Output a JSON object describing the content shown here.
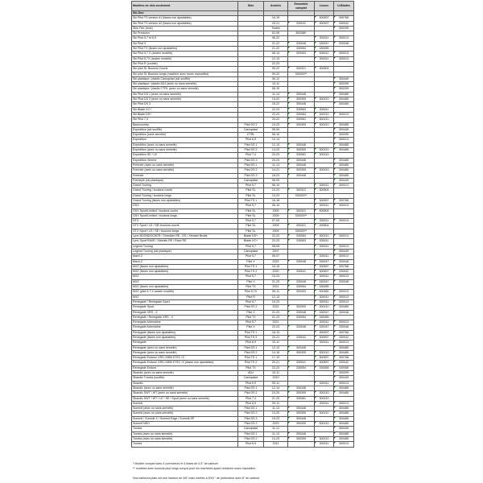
{
  "header": {
    "model": "Modèles de skis seulement",
    "skis": "Skis",
    "years": "Années",
    "complete": "Ensemble complet",
    "runners": "Lisses",
    "ublades": "U-Blades"
  },
  "section": "Ski-Doo",
  "rows": [
    [
      "Ski Pilot TS version #1 (lisses non ajustables)",
      "",
      "16-19",
      "",
      "300597",
      "300768"
    ],
    [
      "Ski Pilot TS version #2 (lisses non ajustables)",
      "",
      "20-21",
      "330041",
      "300597",
      "330042"
    ],
    [
      "Skis Flex (tous)",
      "",
      "Toutes",
      "",
      "",
      "300299"
    ],
    [
      "Ski Precision",
      "",
      "02-06",
      "300288*",
      "",
      ""
    ],
    [
      "Ski Pilot 5,7 et 6,9",
      "",
      "06-22",
      "",
      "300011",
      "300013"
    ],
    [
      "Ski Pilot X",
      "",
      "21-22",
      "330046",
      "330047",
      "330048"
    ],
    [
      "Ski Pilot TX (lisses non ajustables)",
      "",
      "21-22",
      "330054",
      "330055",
      ""
    ],
    [
      "Ski Pilot 5,7 X (ancien modèle)",
      "",
      "08-14",
      "300003",
      "300012",
      "300013"
    ],
    [
      "Ski Pilot 5,7X (ancien modèle)",
      "",
      "12-13",
      "",
      "300011",
      "300013"
    ],
    [
      "Ski Pilot R (course)",
      "",
      "22-23",
      "",
      "",
      ""
    ],
    [
      "Ski pilot SL Boulons Courts",
      "",
      "09-22",
      "300321",
      "300504",
      ""
    ],
    [
      "Ski pilot SL Boulons longs (machine avec roues manuelles)",
      "",
      "09-22",
      "330020**",
      "",
      ""
    ],
    [
      "Ski plastique / plastic Camoplast (ski soufflé)",
      "",
      "05-12",
      "",
      "",
      "300449"
    ],
    [
      "Ski plastique / plastic ADJ (avec ou sans semelle)",
      "",
      "10-11",
      "",
      "",
      "300299"
    ],
    [
      "Ski plastique / plastic CTRL (avec ou sans semelle)",
      "",
      "06-10",
      "",
      "",
      "300299"
    ],
    [
      "Ski Pilot DS 1 (avec ou sans semelle)",
      "",
      "11-14",
      "300446",
      "",
      "300485"
    ],
    [
      "Ski Pilot DS 2 (avec ou sans semelle)",
      "",
      "13-22",
      "300309",
      "300210",
      "300485"
    ],
    [
      "Ski Pilot DS 3",
      "",
      "15-22",
      "300446",
      "",
      "300485"
    ],
    [
      "Ski Blade XC+",
      "",
      "22-23",
      "330063",
      "300011",
      ""
    ],
    [
      "Ski Blade DS+",
      "",
      "22-23",
      "330064",
      "300210",
      "300013"
    ],
    [
      "Ski Pilot 7,4",
      "",
      "20-22",
      "330061",
      "300210",
      ""
    ],
    [
      "Backcountry",
      "Pilot DS 2",
      "19-23",
      "300309",
      "300210",
      "300485"
    ],
    [
      "Expedition (ski soufflé)",
      "Camoplast",
      "05-09",
      "",
      "",
      "300449"
    ],
    [
      "Expedition (sans semelle)",
      "CTRL",
      "06-10",
      "",
      "",
      "300299"
    ],
    [
      "Expedition",
      "Pilot 6,9",
      "10-14",
      "",
      "",
      "300013"
    ],
    [
      "Expedition (avec ou sans semelle)",
      "Pilot DS 1",
      "12-13",
      "300446",
      "",
      "300485"
    ],
    [
      "Expedition (avec ou sans semelle)",
      "Pilot DS 2",
      "14-23",
      "300309",
      "300210",
      "300485"
    ],
    [
      "Expedition SE / LE",
      "Pilot 7,4",
      "20-23",
      "330061",
      "300210",
      ""
    ],
    [
      "Expedition Xtreme",
      "Pilot DS 3",
      "20-23",
      "300446",
      "",
      "300485"
    ],
    [
      "Freeride (avec ou sans semelle)",
      "Pilot DS 1",
      "11-13",
      "300446",
      "",
      "300485"
    ],
    [
      "Freeride (avec ou sans semelle)",
      "Pilot DS 2",
      "14-21",
      "300309",
      "300210",
      "300485"
    ],
    [
      "Freeride",
      "Pilot DS 3",
      "18-23",
      "300446",
      "",
      "300485"
    ],
    [
      "Freestyle (ski plastique)",
      "Camoplast",
      "06-09",
      "",
      "",
      "300449"
    ],
    [
      "Grand Touring",
      "Pilot 5,7",
      "06-10",
      "",
      "300011",
      "300013"
    ],
    [
      "Grand Touring / boulons courts",
      "Pilot SL",
      "10-23",
      "300321",
      "300504",
      ""
    ],
    [
      "Grand Touring / boulons longs",
      "Pilot SL",
      "10-23",
      "330020**",
      "",
      ""
    ],
    [
      "Grand Touring (lisses non ajustables)",
      "Pilot TS 1",
      "16-18",
      "",
      "300597",
      "300768"
    ],
    [
      "GSX",
      "Pilot 5,7",
      "06-15",
      "",
      "300011",
      "300013"
    ],
    [
      "GSX Sport/Limited / boulons courts",
      "Pilot SL",
      "2009",
      "300321",
      "300504",
      ""
    ],
    [
      "GSX Sport/Limited / boulons longs",
      "Pilot SL",
      "2009",
      "330020**",
      "",
      ""
    ],
    [
      "GTX",
      "Pilot 5,7",
      "07-09",
      "",
      "300011",
      "300013"
    ],
    [
      "GTX Sport / LE / SE/ boulons courts",
      "Pilot SL",
      "2009",
      "300321",
      "300504",
      ""
    ],
    [
      "GTX Sport / LE / SE / boulons longs",
      "Pilot SL",
      "2009",
      "330020**",
      "",
      ""
    ],
    [
      "Lynx BOONDOCKER / Shredder RE - DS / Xterrain Brutal",
      "Blade DS+",
      "22-23",
      "330064",
      "300210",
      "300013"
    ],
    [
      "Lynx Sport RAVE / Xterrain RE / Rave RE",
      "Blade XC+",
      "22-23",
      "330063",
      "300011",
      ""
    ],
    [
      "Legend Touring",
      "Pilot 5,7",
      "08-09",
      "",
      "300011",
      "300013"
    ],
    [
      "Legend Touring (ski plastique)",
      "Camoplast",
      "2007",
      "",
      "",
      "300449"
    ],
    [
      "Mach Z",
      "Pilot 5,7",
      "06-07",
      "",
      "300011",
      "300013"
    ],
    [
      "Mach Z",
      "Pilot X",
      "2022",
      "330046",
      "330047",
      "330048"
    ],
    [
      "MXZ (lisses non ajustables)",
      "Pilot TS 1",
      "16-19",
      "",
      "300597",
      "300768"
    ],
    [
      "MXZ (lisses non ajustables)",
      "Pilot TS 2",
      "2020",
      "330041",
      "300597",
      "330042"
    ],
    [
      "MXZ",
      "Pilot 5,7",
      "10-23",
      "",
      "300011",
      "300013"
    ],
    [
      "MXZ",
      "Pilot X",
      "21-23",
      "330046",
      "330047",
      "330048"
    ],
    [
      "MXZ (lisses non ajustables)",
      "Pilot TX",
      "2021",
      "330054",
      "330055",
      ""
    ],
    [
      "MXZ (pilot 5,7 X ancien modèle)",
      "Pilot 5,7X",
      "09-11",
      "300003",
      "300382",
      "300013"
    ],
    [
      "MXZ",
      "Pilot R",
      "12-13",
      "",
      "300011",
      "300013"
    ],
    [
      "Renegade / Renegade Sport",
      "Pilot 5,7",
      "10-23",
      "",
      "300011",
      "300013"
    ],
    [
      "Renegade Sport",
      "Pilot DS 2",
      "2022",
      "300309",
      "300210",
      "300485"
    ],
    [
      "Renegade XRS - X",
      "Pilot X",
      "21-23",
      "330046",
      "330047",
      "330048"
    ],
    [
      "Renegade / Renegade XRS - X",
      "Pilot TX",
      "21-23",
      "330054",
      "330055",
      ""
    ],
    [
      "Renegade Adrenaline",
      "Pilot 5,7",
      "2021",
      "",
      "300011",
      "300013"
    ],
    [
      "Renegade Adrenaline",
      "Pilot X",
      "22-23",
      "330046",
      "330047",
      "330048"
    ],
    [
      "Renegade (lisses non ajustables)",
      "Pilot TS 1",
      "18-19",
      "",
      "300597",
      "300768"
    ],
    [
      "Renegade (lisses non ajustables)",
      "Pilot TS 2",
      "20-21",
      "330041",
      "300597",
      "330042"
    ],
    [
      "Renegade",
      "Pilot 6,9",
      "10-11",
      "",
      "300011",
      "300013"
    ],
    [
      "Renegade (avec ou sans semelle)",
      "Pilot DS 1",
      "12-13",
      "300446",
      "",
      "300485"
    ],
    [
      "Renegade (avec ou sans semelle)",
      "Pilot DS 2",
      "14-16",
      "300309",
      "300210",
      "300485"
    ],
    [
      "Renegade Enduro/ XRS /X850 ETEC /X",
      "Pilot TS 1",
      "17-19",
      "",
      "300597",
      "300768"
    ],
    [
      "Renegade Enduro/ XRS /X850 ETEC /X (lisses non ajustables)",
      "Pilot TS 2",
      "20-21",
      "330041",
      "300597",
      "330042"
    ],
    [
      "Renegade Enduro",
      "Pilot TX",
      "22-23",
      "330054",
      "330055",
      "330056"
    ],
    [
      "Skandic (avec ou sans semelle)",
      "ADJ",
      "10-11",
      "",
      "",
      "300299"
    ],
    [
      "Skandic Tundra (soufflé)",
      "Camoplast",
      "2010",
      "",
      "",
      "300449"
    ],
    [
      "Skandic",
      "Pilot 6,9",
      "09-11",
      "",
      "300011",
      "300013"
    ],
    [
      "Skandic (avec ou sans semelle)",
      "Pilot DS 1",
      "12-14",
      "300446",
      "",
      "300485"
    ],
    [
      "Skandic SWT / WT (avec ou sans semelle)",
      "Pilot DS 2",
      "15-20",
      "300309",
      "300210",
      "300485"
    ],
    [
      "Skandic SWT / WT / LE / SE / Sport (avec ou sans semelle)",
      "Pilot 7,4",
      "21-23",
      "330061",
      "300210",
      ""
    ],
    [
      "Summit",
      "Pilot 6,9",
      "09-11",
      "",
      "300011",
      "300013"
    ],
    [
      "Summit (avec ou sans semelle)",
      "Pilot DS 1",
      "11-13",
      "300446",
      "",
      "300485"
    ],
    [
      "Summit (avec ou sans semelle)",
      "Pilot DS 2",
      "13-20",
      "300309",
      "300210",
      "300485"
    ],
    [
      "Summit / Summit X / Summit Edge / Summit SP",
      "Pilot DS 3",
      "15-23",
      "300446",
      "",
      "300485"
    ],
    [
      "Summit NEO",
      "Pilot DS 2",
      "2023",
      "300309",
      "300210",
      "300485"
    ],
    [
      "Tundra",
      "Camoplast",
      "11-12",
      "",
      "",
      "300449"
    ],
    [
      "Tundra (avec ou sans semelle)",
      "Pilot DS 1",
      "11-13",
      "300446",
      "",
      "300485"
    ],
    [
      "Tundra (avec ou sans semelle)",
      "Pilot DS 2",
      "14-23",
      "300309",
      "300210",
      "300485"
    ],
    [
      "Tundra",
      "Pilot 6,9",
      "2011",
      "",
      "300011",
      "300013"
    ]
  ],
  "notes": {
    "note1": "* Modèle complet avec 4 correcteurs et 4 lisses de 4,5\" de carbure",
    "note2": "** modèles avec boulons plus longs conçus pour les machines ayant certaines roues manuelles",
    "note3": "Nos carbures plats ont une hauteur de 3/8\" mais insérés à 5/16 \" de profondeur avec 6\" de carbure."
  },
  "colors": {
    "header_bg": "#d9d9d9",
    "text_marker": "#1a8a1a"
  }
}
